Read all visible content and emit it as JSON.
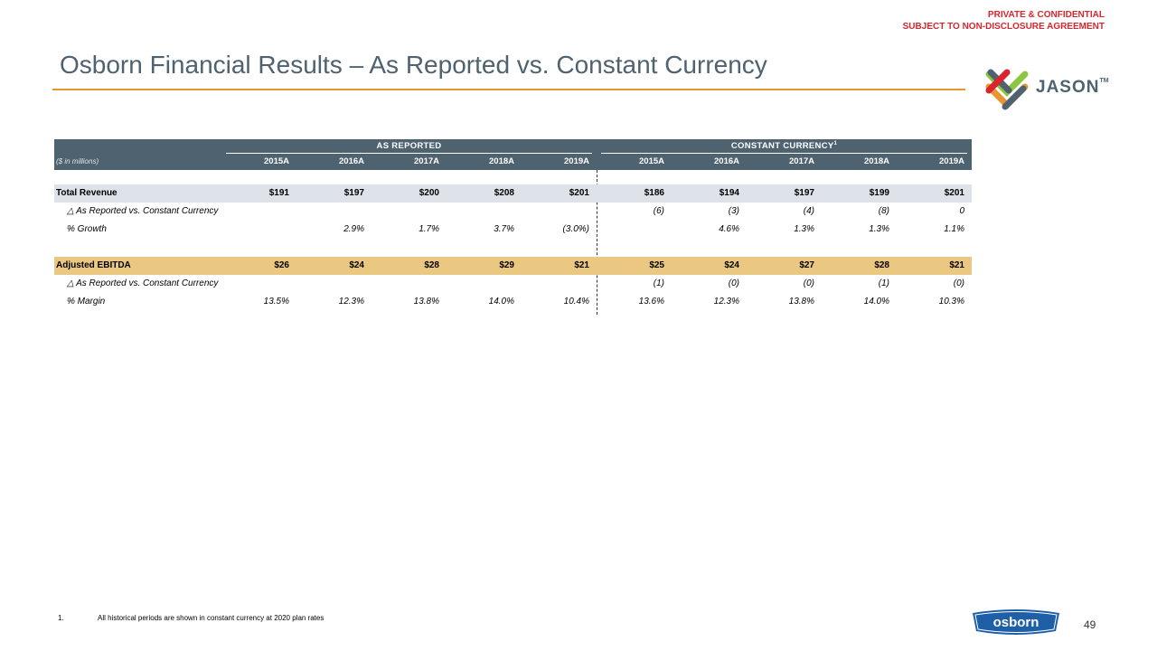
{
  "confidential": {
    "line1": "PRIVATE & CONFIDENTIAL",
    "line2": "SUBJECT TO NON-DISCLOSURE AGREEMENT"
  },
  "title": "Osborn Financial Results – As Reported vs. Constant Currency",
  "logo": {
    "name": "JASON",
    "tm": "TM",
    "brand_colors": [
      "#8dc63f",
      "#e8962f",
      "#4f6270"
    ]
  },
  "table": {
    "unit_label": "($ in millions)",
    "group_reported": "AS REPORTED",
    "group_constant": "CONSTANT CURRENCY",
    "group_constant_sup": "1",
    "years": [
      "2015A",
      "2016A",
      "2017A",
      "2018A",
      "2019A",
      "2015A",
      "2016A",
      "2017A",
      "2018A",
      "2019A"
    ],
    "rows": [
      {
        "label": "Total Revenue",
        "values": [
          "$191",
          "$197",
          "$200",
          "$208",
          "$201",
          "$186",
          "$194",
          "$197",
          "$199",
          "$201"
        ]
      },
      {
        "label": "△ As Reported vs. Constant Currency",
        "values": [
          "",
          "",
          "",
          "",
          "",
          "(6)",
          "(3)",
          "(4)",
          "(8)",
          "0"
        ]
      },
      {
        "label": "% Growth",
        "values": [
          "",
          "2.9%",
          "1.7%",
          "3.7%",
          "(3.0%)",
          "",
          "4.6%",
          "1.3%",
          "1.3%",
          "1.1%"
        ]
      },
      {
        "label": "Adjusted EBITDA",
        "values": [
          "$26",
          "$24",
          "$28",
          "$29",
          "$21",
          "$25",
          "$24",
          "$27",
          "$28",
          "$21"
        ]
      },
      {
        "label": "△ As Reported vs. Constant Currency",
        "values": [
          "",
          "",
          "",
          "",
          "",
          "(1)",
          "(0)",
          "(0)",
          "(1)",
          "(0)"
        ]
      },
      {
        "label": "% Margin",
        "values": [
          "13.5%",
          "12.3%",
          "13.8%",
          "14.0%",
          "10.4%",
          "13.6%",
          "12.3%",
          "13.8%",
          "14.0%",
          "10.3%"
        ]
      }
    ]
  },
  "footnote": {
    "number": "1.",
    "text": "All historical periods are shown in constant currency at 2020 plan rates"
  },
  "osborn_logo": "osborn",
  "page_number": "49"
}
